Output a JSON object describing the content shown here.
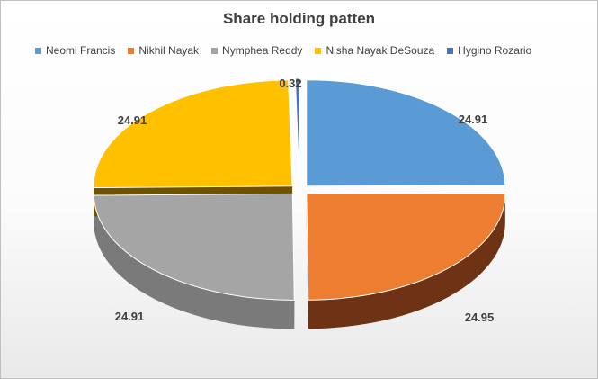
{
  "chart_data": {
    "type": "pie",
    "title": "Share holding patten",
    "legend_position": "top",
    "categories": [
      "Neomi Francis",
      "Nikhil Nayak",
      "Nymphea Reddy",
      "Nisha Nayak DeSouza",
      "Hygino Rozario"
    ],
    "values": [
      24.91,
      24.95,
      24.91,
      24.91,
      0.32
    ],
    "labels": [
      "24.91",
      "24.95",
      "24.91",
      "24.91",
      "0.32"
    ],
    "colors": [
      "#5b9bd5",
      "#ed7d31",
      "#a5a5a5",
      "#ffc000",
      "#4472c4"
    ],
    "side_colors": [
      "#203a55",
      "#6e3214",
      "#7a7a7a",
      "#6e5200",
      "#1f3a70"
    ],
    "style": "3d-exploded"
  }
}
